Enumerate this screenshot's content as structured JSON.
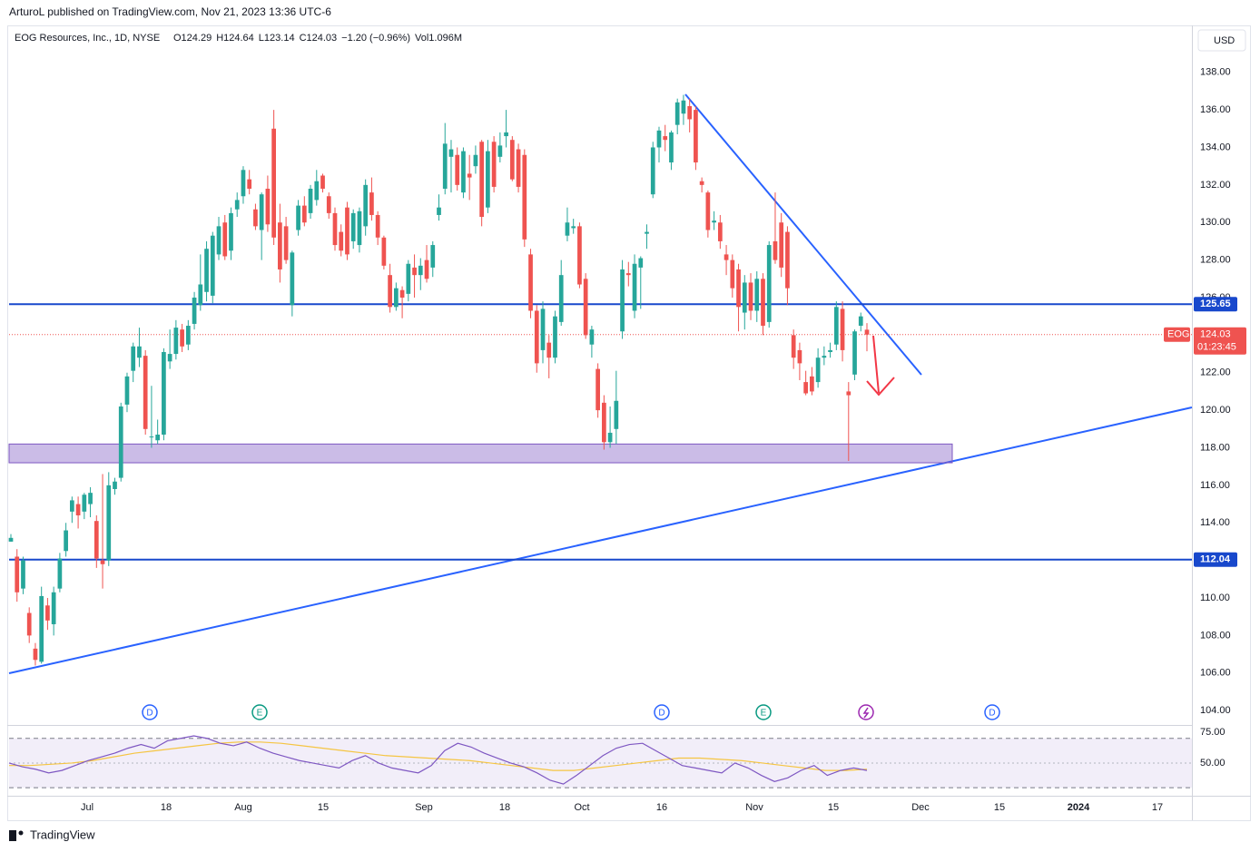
{
  "header": {
    "attribution": "ArturoL published on TradingView.com, Nov 21, 2023 13:36 UTC-6",
    "logo": "TradingView"
  },
  "chart_data": {
    "type": "candlestick",
    "title": "EOG Resources, Inc., 1D, NYSE",
    "legend_values": [
      "O124.29",
      "H124.64",
      "L123.14",
      "C124.03",
      "−1.20 (−0.96%)",
      "Vol1.096M"
    ],
    "currency": "USD",
    "up_color": "#26a69a",
    "down_color": "#ef5350",
    "ylim": [
      103.33,
      140.5
    ],
    "yticks": [
      {
        "value": 104,
        "label": "104.00"
      },
      {
        "value": 106,
        "label": "106.00"
      },
      {
        "value": 108,
        "label": "108.00"
      },
      {
        "value": 110,
        "label": "110.00"
      },
      {
        "value": 112,
        "label": "112.00"
      },
      {
        "value": 114,
        "label": "114.00"
      },
      {
        "value": 116,
        "label": "116.00"
      },
      {
        "value": 118,
        "label": "118.00"
      },
      {
        "value": 120,
        "label": "120.00"
      },
      {
        "value": 122,
        "label": "122.00"
      },
      {
        "value": 124,
        "label": "124.00"
      },
      {
        "value": 126,
        "label": "126.00"
      },
      {
        "value": 128,
        "label": "128.00"
      },
      {
        "value": 130,
        "label": "130.00"
      },
      {
        "value": 132,
        "label": "132.00"
      },
      {
        "value": 134,
        "label": "134.00"
      },
      {
        "value": 136,
        "label": "136.00"
      },
      {
        "value": 138,
        "label": "138.00"
      }
    ],
    "x_labels": [
      "Jul",
      "18",
      "Aug",
      "15",
      "Sep",
      "18",
      "Oct",
      "16",
      "Nov",
      "15",
      "Dec",
      "15",
      "2024",
      "17"
    ],
    "series": [
      {
        "name": "EOG",
        "open": [
          113.0,
          112.2,
          110.5,
          109.2,
          107.3,
          106.6,
          109.6,
          108.6,
          110.5,
          112.5,
          114.6,
          115.0,
          114.6,
          115.0,
          114.1,
          112.0,
          112.0,
          115.8,
          116.4,
          120.3,
          122.1,
          122.8,
          122.9,
          118.6,
          118.4,
          118.7,
          122.6,
          123.0,
          124.3,
          123.5,
          124.6,
          125.6,
          126.3,
          126.1,
          128.3,
          130.0,
          128.5,
          130.7,
          131.4,
          132.3,
          130.7,
          129.6,
          131.8,
          135.0,
          130.0,
          129.8,
          125.6,
          129.6,
          130.9,
          130.5,
          131.2,
          132.5,
          131.4,
          130.5,
          129.5,
          130.8,
          129.0,
          128.8,
          129.8,
          131.6,
          130.4,
          129.2,
          127.2,
          125.5,
          126.4,
          126.2,
          127.6,
          127.2,
          128.0,
          127.6,
          130.4,
          131.8,
          133.5,
          133.6,
          131.6,
          132.6,
          133.0,
          134.3,
          130.8,
          134.3,
          133.5,
          134.6,
          134.4,
          133.9,
          133.6,
          128.3,
          125.3,
          123.2,
          123.6,
          122.8,
          124.7,
          129.3,
          129.7,
          129.8,
          127.0,
          123.5,
          122.2,
          120.4,
          118.3,
          119.0,
          124.2,
          127.3,
          125.3,
          127.6,
          129.4,
          131.5,
          134.0,
          134.6,
          133.2,
          135.2,
          135.8,
          136.2,
          136.0,
          132.2,
          131.6,
          130.0,
          130.0,
          128.3,
          128.0,
          127.5,
          125.2,
          126.8,
          125.3,
          127.0,
          124.7,
          129.0,
          130.0,
          129.5,
          124.0,
          123.2,
          121.5,
          121.8,
          121.5,
          122.8,
          123.1,
          123.5,
          125.4,
          121.0,
          121.9,
          124.5,
          124.29
        ],
        "high": [
          113.4,
          112.6,
          112.2,
          109.5,
          107.6,
          110.6,
          110.0,
          110.6,
          112.4,
          114.0,
          115.4,
          115.4,
          115.6,
          115.9,
          114.4,
          116.6,
          116.7,
          116.4,
          120.4,
          122.0,
          123.6,
          124.4,
          123.2,
          121.3,
          119.5,
          123.3,
          124.3,
          124.8,
          124.6,
          124.8,
          126.3,
          128.3,
          129.0,
          129.5,
          130.3,
          130.4,
          130.8,
          131.6,
          133.0,
          132.8,
          131.0,
          131.6,
          132.5,
          136.0,
          131.0,
          130.3,
          128.5,
          131.2,
          131.4,
          132.0,
          132.8,
          132.6,
          131.6,
          130.8,
          129.9,
          131.1,
          130.7,
          130.8,
          132.3,
          132.4,
          130.6,
          129.3,
          127.8,
          126.8,
          126.6,
          128.0,
          128.3,
          128.1,
          128.8,
          129.0,
          131.5,
          135.3,
          134.4,
          134.0,
          134.0,
          133.6,
          134.1,
          134.4,
          134.4,
          134.6,
          134.8,
          136.0,
          134.6,
          134.2,
          133.9,
          128.6,
          125.6,
          125.8,
          124.0,
          125.3,
          128.0,
          130.8,
          130.2,
          130.0,
          127.3,
          124.5,
          122.5,
          120.8,
          120.2,
          122.1,
          128.0,
          127.9,
          128.3,
          128.2,
          129.9,
          134.3,
          135.1,
          135.2,
          134.9,
          136.6,
          136.8,
          136.6,
          136.2,
          132.4,
          131.7,
          130.6,
          130.4,
          128.8,
          128.3,
          127.8,
          127.2,
          127.3,
          127.4,
          127.3,
          129.0,
          131.6,
          130.5,
          129.8,
          124.3,
          123.6,
          122.1,
          122.3,
          123.3,
          123.4,
          123.6,
          125.8,
          125.8,
          121.5,
          124.3,
          125.2,
          124.64
        ],
        "low": [
          113.0,
          109.8,
          110.2,
          107.6,
          106.4,
          106.5,
          108.3,
          108.0,
          110.3,
          112.2,
          114.0,
          113.7,
          114.2,
          114.3,
          111.6,
          110.5,
          111.7,
          115.5,
          116.2,
          119.9,
          121.5,
          122.3,
          118.7,
          118.0,
          118.2,
          118.4,
          122.2,
          122.7,
          123.1,
          123.2,
          124.3,
          125.3,
          125.8,
          125.7,
          128.0,
          128.0,
          128.0,
          130.3,
          131.0,
          131.5,
          129.6,
          128.0,
          129.5,
          128.8,
          126.8,
          127.8,
          125.0,
          129.3,
          129.8,
          130.2,
          130.9,
          131.6,
          130.2,
          128.5,
          128.2,
          128.0,
          128.6,
          128.4,
          129.3,
          130.1,
          128.8,
          127.5,
          125.2,
          125.3,
          124.9,
          125.8,
          126.0,
          126.4,
          126.8,
          127.1,
          130.1,
          131.5,
          131.6,
          131.7,
          131.3,
          131.2,
          132.6,
          129.8,
          130.5,
          131.6,
          133.2,
          134.0,
          132.2,
          131.6,
          128.7,
          124.9,
          122.0,
          122.5,
          121.7,
          122.5,
          124.5,
          129.0,
          129.4,
          126.5,
          123.8,
          122.8,
          119.6,
          117.9,
          118.0,
          118.2,
          123.8,
          126.6,
          124.9,
          125.4,
          128.6,
          131.3,
          133.2,
          133.8,
          132.8,
          134.7,
          135.2,
          134.8,
          132.8,
          131.6,
          129.2,
          129.6,
          128.6,
          127.2,
          126.0,
          124.2,
          124.3,
          124.8,
          124.7,
          124.0,
          124.4,
          127.8,
          127.1,
          125.6,
          122.2,
          121.6,
          120.8,
          120.8,
          121.2,
          122.4,
          122.8,
          123.2,
          122.6,
          117.3,
          121.6,
          124.2,
          123.14
        ],
        "close": [
          113.2,
          110.3,
          112.0,
          108.0,
          106.7,
          110.1,
          108.8,
          110.3,
          112.1,
          113.6,
          115.2,
          114.4,
          115.5,
          115.6,
          112.1,
          111.8,
          116.0,
          116.2,
          120.2,
          121.8,
          123.4,
          123.4,
          119.0,
          118.6,
          118.7,
          123.1,
          123.0,
          124.4,
          123.4,
          124.5,
          126.0,
          126.7,
          128.6,
          129.3,
          129.8,
          128.2,
          130.5,
          131.2,
          132.8,
          131.8,
          129.8,
          131.5,
          129.9,
          129.2,
          127.5,
          128.0,
          128.4,
          130.9,
          130.0,
          131.8,
          132.2,
          131.8,
          130.5,
          128.8,
          128.5,
          128.3,
          130.5,
          130.6,
          132.0,
          130.4,
          129.2,
          127.7,
          125.5,
          126.5,
          126.0,
          127.8,
          127.2,
          127.7,
          127.0,
          128.8,
          130.8,
          134.2,
          133.9,
          132.0,
          133.8,
          132.4,
          133.6,
          130.3,
          133.8,
          131.9,
          134.1,
          134.8,
          132.3,
          131.9,
          129.1,
          125.3,
          122.5,
          125.4,
          122.8,
          125.0,
          127.2,
          130.0,
          129.8,
          126.7,
          124.0,
          124.3,
          120.0,
          118.3,
          118.8,
          120.5,
          127.5,
          127.2,
          127.8,
          128.1,
          129.5,
          134.0,
          134.9,
          134.4,
          134.8,
          136.4,
          136.5,
          135.5,
          133.2,
          132.0,
          129.6,
          130.1,
          129.0,
          128.0,
          126.5,
          125.5,
          126.8,
          125.3,
          127.0,
          124.5,
          128.8,
          128.0,
          127.6,
          126.5,
          122.8,
          122.5,
          120.9,
          121.0,
          122.8,
          122.9,
          123.2,
          125.5,
          123.2,
          120.8,
          124.2,
          125.0,
          124.03
        ]
      }
    ],
    "levels": [
      {
        "value": 125.65,
        "label": "125.65"
      },
      {
        "value": 112.04,
        "label": "112.04"
      }
    ],
    "last": {
      "value": 124.03,
      "label": "124.03",
      "countdown": "01:23:45"
    },
    "zone": [
      117.2,
      118.2
    ],
    "events": [
      "D",
      "E",
      "D",
      "E",
      "D"
    ],
    "rsi": {
      "ylim": [
        23.5,
        80.1
      ],
      "yticks": [
        {
          "value": 75,
          "label": "75.00"
        },
        {
          "value": 50,
          "label": "50.00"
        }
      ],
      "band": [
        30,
        70
      ],
      "series": [
        {
          "name": "RSI",
          "color": "#7e57c2",
          "values": [
            50,
            47,
            45,
            42,
            44,
            48,
            52,
            55,
            58,
            62,
            65,
            62,
            68,
            70,
            72,
            70,
            66,
            64,
            67,
            62,
            58,
            55,
            52,
            50,
            48,
            46,
            52,
            56,
            50,
            46,
            44,
            42,
            48,
            60,
            66,
            63,
            58,
            54,
            50,
            47,
            42,
            36,
            33,
            40,
            48,
            56,
            62,
            65,
            66,
            60,
            54,
            48,
            46,
            44,
            42,
            50,
            46,
            40,
            35,
            38,
            44,
            48,
            40,
            44,
            46,
            44
          ]
        },
        {
          "name": "MA",
          "color": "#f5c542",
          "values": [
            48,
            48,
            49,
            50,
            52,
            55,
            58,
            60,
            62,
            64,
            66,
            67,
            67,
            66,
            64,
            62,
            60,
            58,
            56,
            55,
            54,
            53,
            52,
            50,
            48,
            46,
            44,
            44,
            46,
            48,
            50,
            52,
            54,
            54,
            53,
            52,
            50,
            48,
            46,
            44,
            44,
            45
          ]
        }
      ]
    }
  }
}
